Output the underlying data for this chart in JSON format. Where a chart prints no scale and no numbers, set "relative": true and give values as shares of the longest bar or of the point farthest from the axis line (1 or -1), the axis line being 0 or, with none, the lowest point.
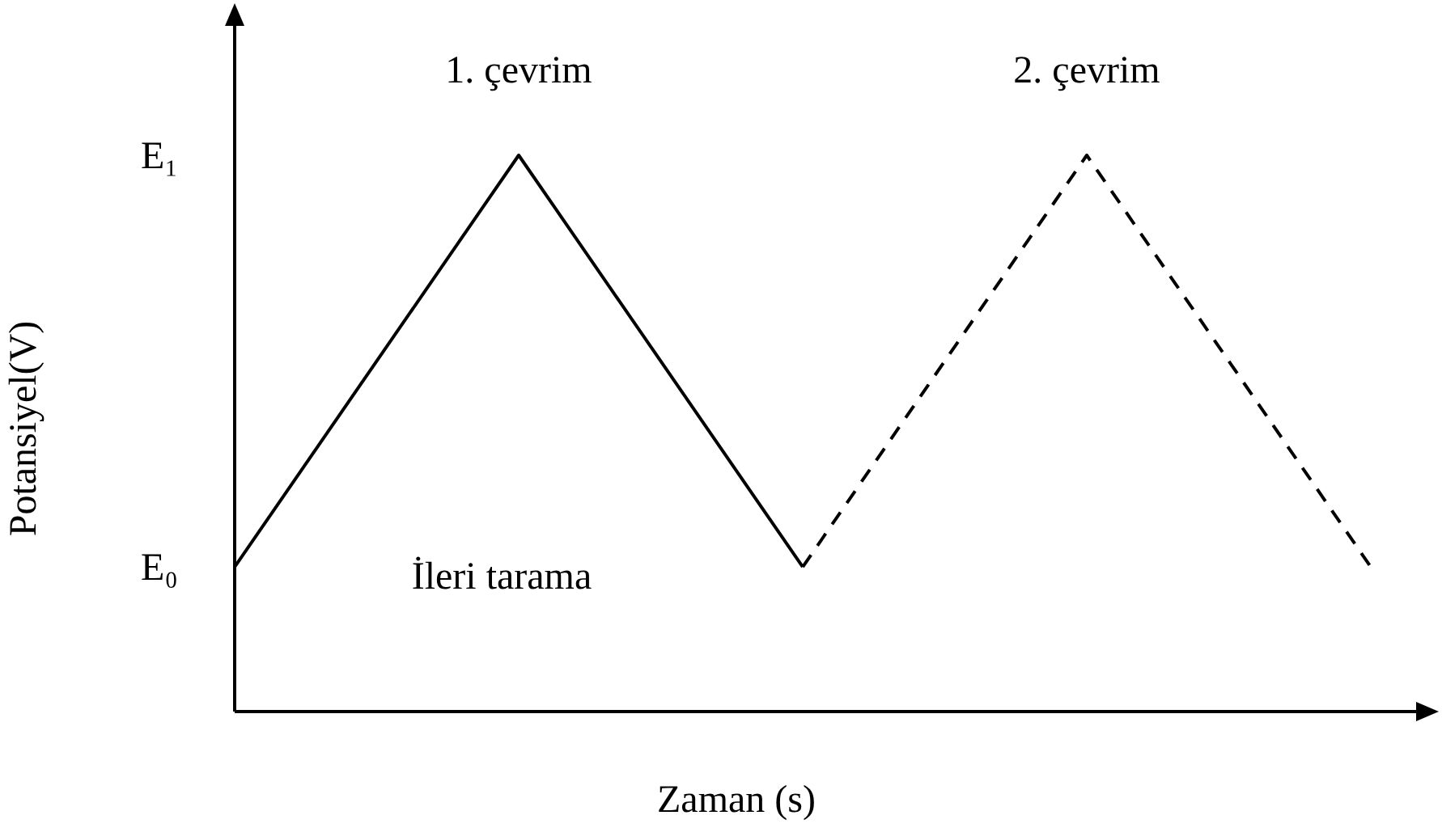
{
  "chart_data": {
    "type": "line",
    "relative": true,
    "xlabel": "Zaman (s)",
    "ylabel": "Potansiyel(V)",
    "categories": [
      null,
      null,
      null,
      null,
      null
    ],
    "series": [
      {
        "color": "#000000",
        "line_style": "solid",
        "values": [
          0.26,
          1,
          0.26,
          null,
          null
        ]
      },
      {
        "color": "#000000",
        "line_style": "dashed",
        "values": [
          null,
          null,
          0.26,
          1,
          0.26
        ]
      }
    ],
    "annotations": [
      "1. çevrim",
      "2. çevrim",
      "İleri tarama",
      "E₁",
      "E₀"
    ]
  }
}
